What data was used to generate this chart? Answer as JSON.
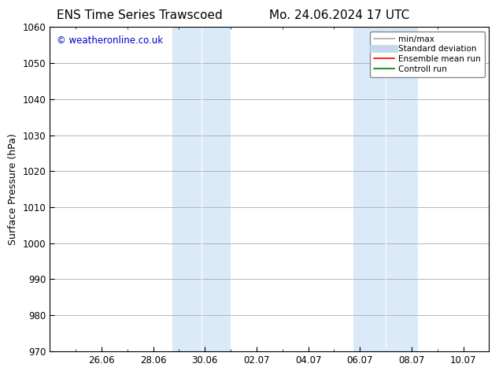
{
  "title_left": "ENS Time Series Trawscoed",
  "title_right": "Mo. 24.06.2024 17 UTC",
  "ylabel": "Surface Pressure (hPa)",
  "ylim": [
    970,
    1060
  ],
  "yticks": [
    970,
    980,
    990,
    1000,
    1010,
    1020,
    1030,
    1040,
    1050,
    1060
  ],
  "total_days": 17,
  "xtick_labels": [
    "26.06",
    "28.06",
    "30.06",
    "02.07",
    "04.07",
    "06.07",
    "08.07",
    "10.07"
  ],
  "xtick_positions": [
    2,
    4,
    6,
    8,
    10,
    12,
    14,
    16
  ],
  "shaded_bands": [
    {
      "start_day": 4.75,
      "end_day": 5.5
    },
    {
      "start_day": 5.5,
      "end_day": 7.0
    },
    {
      "start_day": 11.75,
      "end_day": 12.5
    },
    {
      "start_day": 12.5,
      "end_day": 14.25
    }
  ],
  "shaded_color": "#daeaf8",
  "watermark_text": "© weatheronline.co.uk",
  "watermark_color": "#0000cc",
  "background_color": "#ffffff",
  "legend_items": [
    {
      "label": "min/max",
      "color": "#aaaaaa",
      "lw": 1.2,
      "style": "solid"
    },
    {
      "label": "Standard deviation",
      "color": "#c5d8ea",
      "lw": 7,
      "style": "solid"
    },
    {
      "label": "Ensemble mean run",
      "color": "#ff0000",
      "lw": 1.2,
      "style": "solid"
    },
    {
      "label": "Controll run",
      "color": "#007700",
      "lw": 1.2,
      "style": "solid"
    }
  ],
  "grid_color": "#aaaaaa",
  "title_fontsize": 11,
  "axis_label_fontsize": 9,
  "tick_fontsize": 8.5,
  "watermark_fontsize": 8.5
}
